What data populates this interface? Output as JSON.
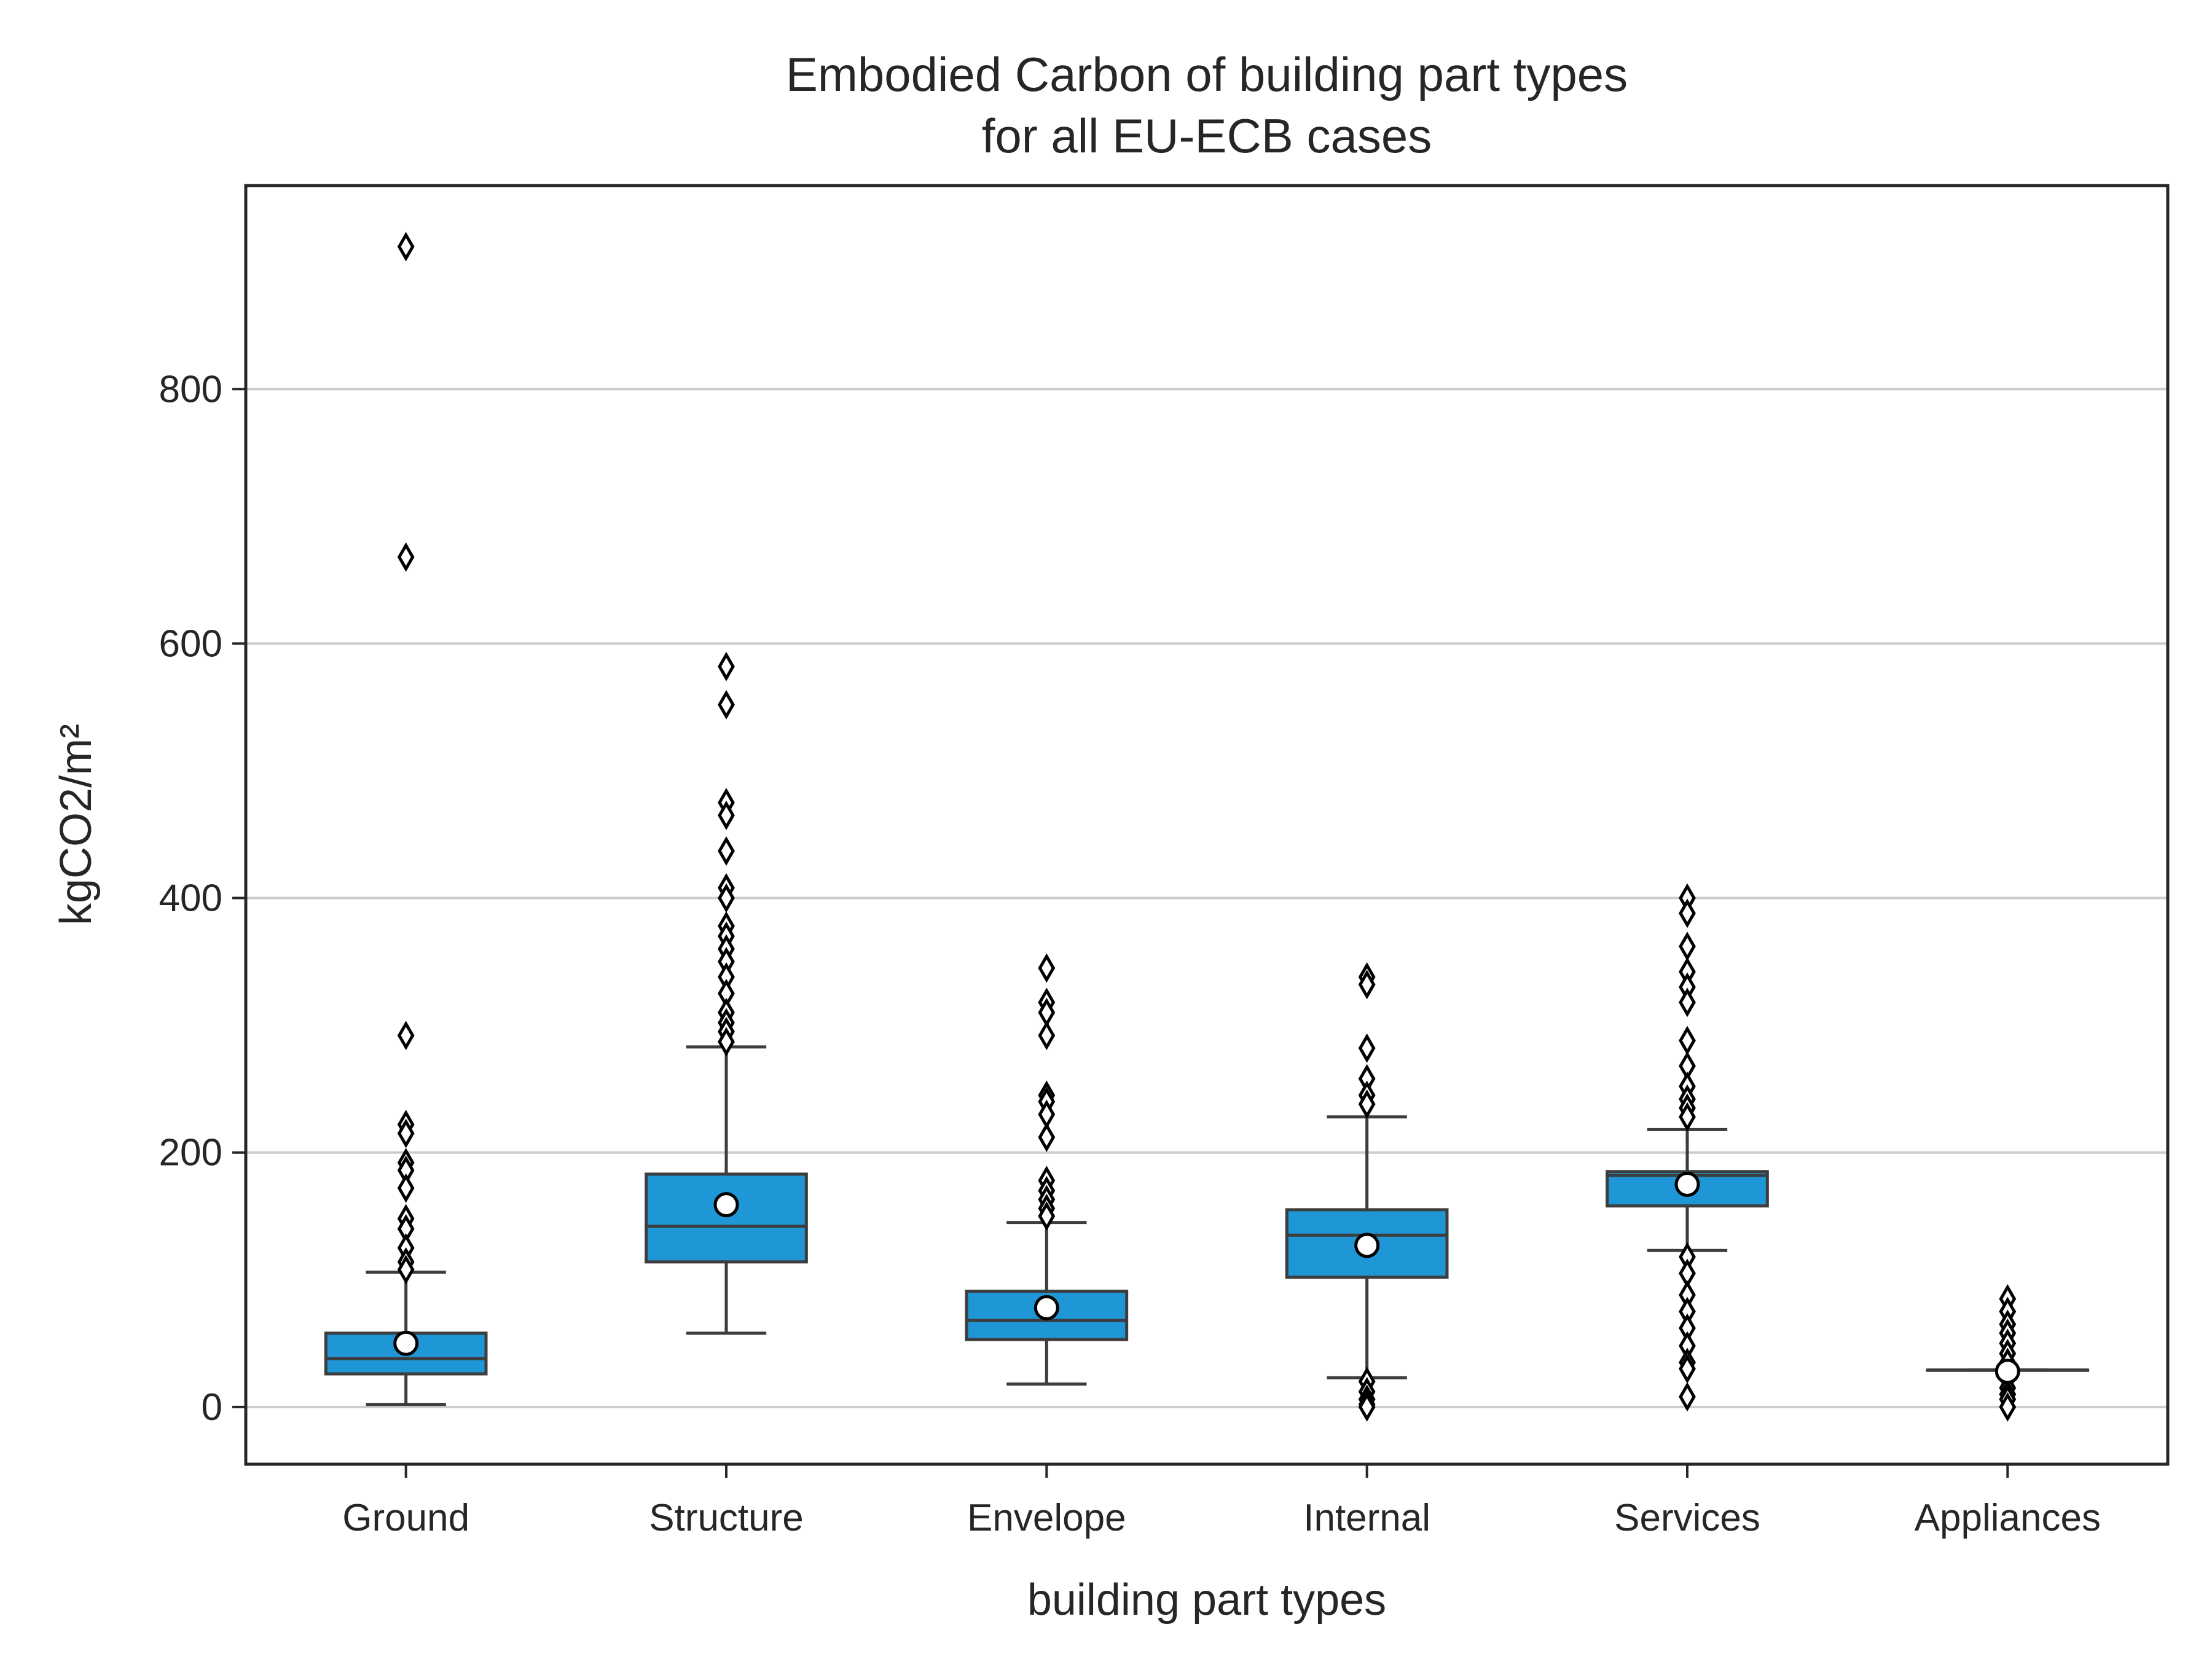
{
  "chart_data": {
    "type": "box",
    "title_lines": [
      "Embodied Carbon of building part types",
      "for all EU-ECB cases"
    ],
    "xlabel": "building part types",
    "ylabel": "kgCO2/m²",
    "ylim": [
      -45,
      960
    ],
    "yticks": [
      0,
      200,
      400,
      600,
      800
    ],
    "grid": "horizontal",
    "box_color": "#1f96d6",
    "categories": [
      "Ground",
      "Structure",
      "Envelope",
      "Internal",
      "Services",
      "Appliances"
    ],
    "boxes": [
      {
        "category": "Ground",
        "whisker_low": 2,
        "q1": 26,
        "median": 38,
        "q3": 58,
        "whisker_high": 106,
        "mean": 50,
        "outliers": [
          912,
          668,
          292,
          222,
          215,
          192,
          186,
          172,
          148,
          140,
          125,
          114,
          108
        ]
      },
      {
        "category": "Structure",
        "whisker_low": 58,
        "q1": 114,
        "median": 142,
        "q3": 183,
        "whisker_high": 283,
        "mean": 159,
        "outliers": [
          582,
          552,
          475,
          465,
          437,
          408,
          400,
          378,
          370,
          360,
          350,
          338,
          325,
          310,
          302,
          295,
          287
        ]
      },
      {
        "category": "Envelope",
        "whisker_low": 18,
        "q1": 53,
        "median": 68,
        "q3": 91,
        "whisker_high": 145,
        "mean": 78,
        "outliers": [
          345,
          318,
          310,
          292,
          245,
          240,
          230,
          212,
          178,
          170,
          163,
          156,
          150
        ]
      },
      {
        "category": "Internal",
        "whisker_low": 23,
        "q1": 102,
        "median": 135,
        "q3": 155,
        "whisker_high": 228,
        "mean": 127,
        "outliers": [
          338,
          332,
          282,
          258,
          245,
          238,
          20,
          12,
          6,
          2,
          0
        ]
      },
      {
        "category": "Services",
        "whisker_low": 123,
        "q1": 158,
        "median": 182,
        "q3": 185,
        "whisker_high": 218,
        "mean": 175,
        "outliers": [
          400,
          388,
          362,
          342,
          330,
          318,
          288,
          268,
          252,
          242,
          235,
          228,
          118,
          105,
          88,
          75,
          62,
          48,
          35,
          30,
          8
        ]
      },
      {
        "category": "Appliances",
        "whisker_low": 29,
        "q1": 29,
        "median": 29,
        "q3": 29,
        "whisker_high": 29,
        "mean": 28,
        "outliers": [
          85,
          75,
          65,
          58,
          50,
          42,
          35,
          22,
          15,
          10,
          6,
          0
        ]
      }
    ]
  }
}
